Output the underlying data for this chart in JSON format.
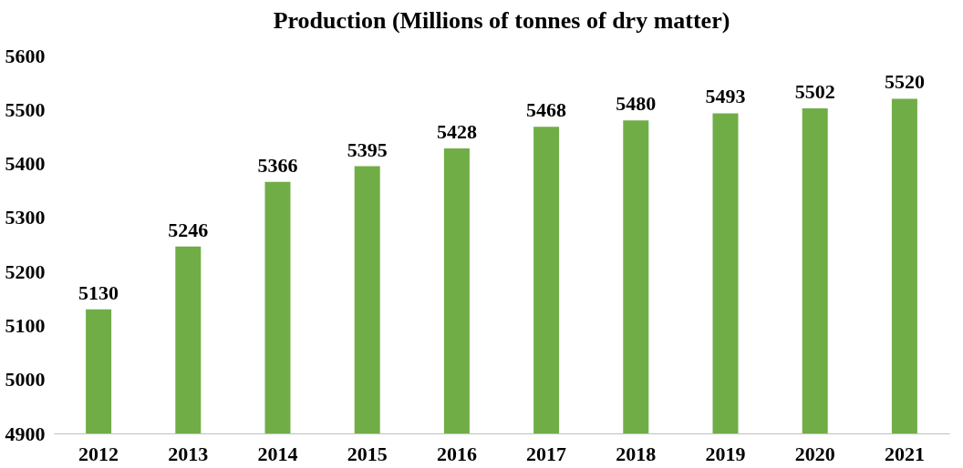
{
  "chart_data": {
    "type": "bar",
    "title": "Production (Millions of tonnes of dry matter)",
    "categories": [
      "2012",
      "2013",
      "2014",
      "2015",
      "2016",
      "2017",
      "2018",
      "2019",
      "2020",
      "2021"
    ],
    "values": [
      5130,
      5246,
      5366,
      5395,
      5428,
      5468,
      5480,
      5493,
      5502,
      5520
    ],
    "color": "#70ad47",
    "ylim": [
      4900,
      5600
    ],
    "yticks": [
      4900,
      5000,
      5100,
      5200,
      5300,
      5400,
      5500,
      5600
    ],
    "grid": false,
    "data_labels": true
  }
}
